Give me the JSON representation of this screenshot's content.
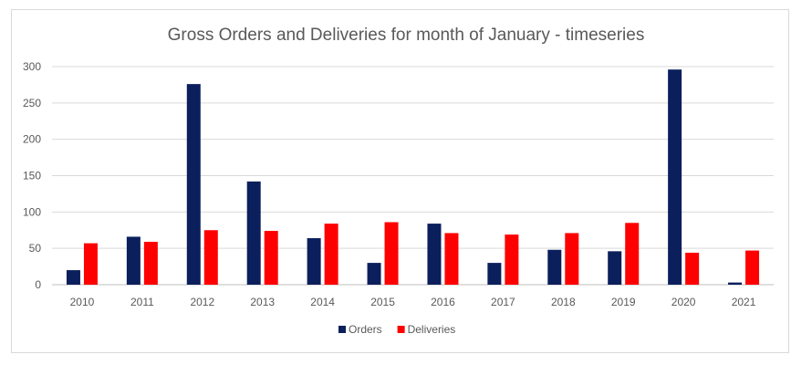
{
  "chart_data": {
    "type": "bar",
    "title": "Gross Orders and Deliveries for month of January - timeseries",
    "xlabel": "",
    "ylabel": "",
    "ylim": [
      0,
      300
    ],
    "yticks": [
      "0",
      "50",
      "100",
      "150",
      "200",
      "250",
      "300"
    ],
    "ytick_values": [
      0,
      50,
      100,
      150,
      200,
      250,
      300
    ],
    "categories": [
      "2010",
      "2011",
      "2012",
      "2013",
      "2014",
      "2015",
      "2016",
      "2017",
      "2018",
      "2019",
      "2020",
      "2021"
    ],
    "series": [
      {
        "name": "Orders",
        "color": "#0b1f5c",
        "values": [
          20,
          66,
          276,
          142,
          64,
          30,
          84,
          30,
          48,
          46,
          296,
          3
        ]
      },
      {
        "name": "Deliveries",
        "color": "#ff0000",
        "values": [
          57,
          59,
          75,
          74,
          84,
          86,
          71,
          69,
          71,
          85,
          44,
          47
        ]
      }
    ],
    "grid": true,
    "legend": "bottom"
  }
}
